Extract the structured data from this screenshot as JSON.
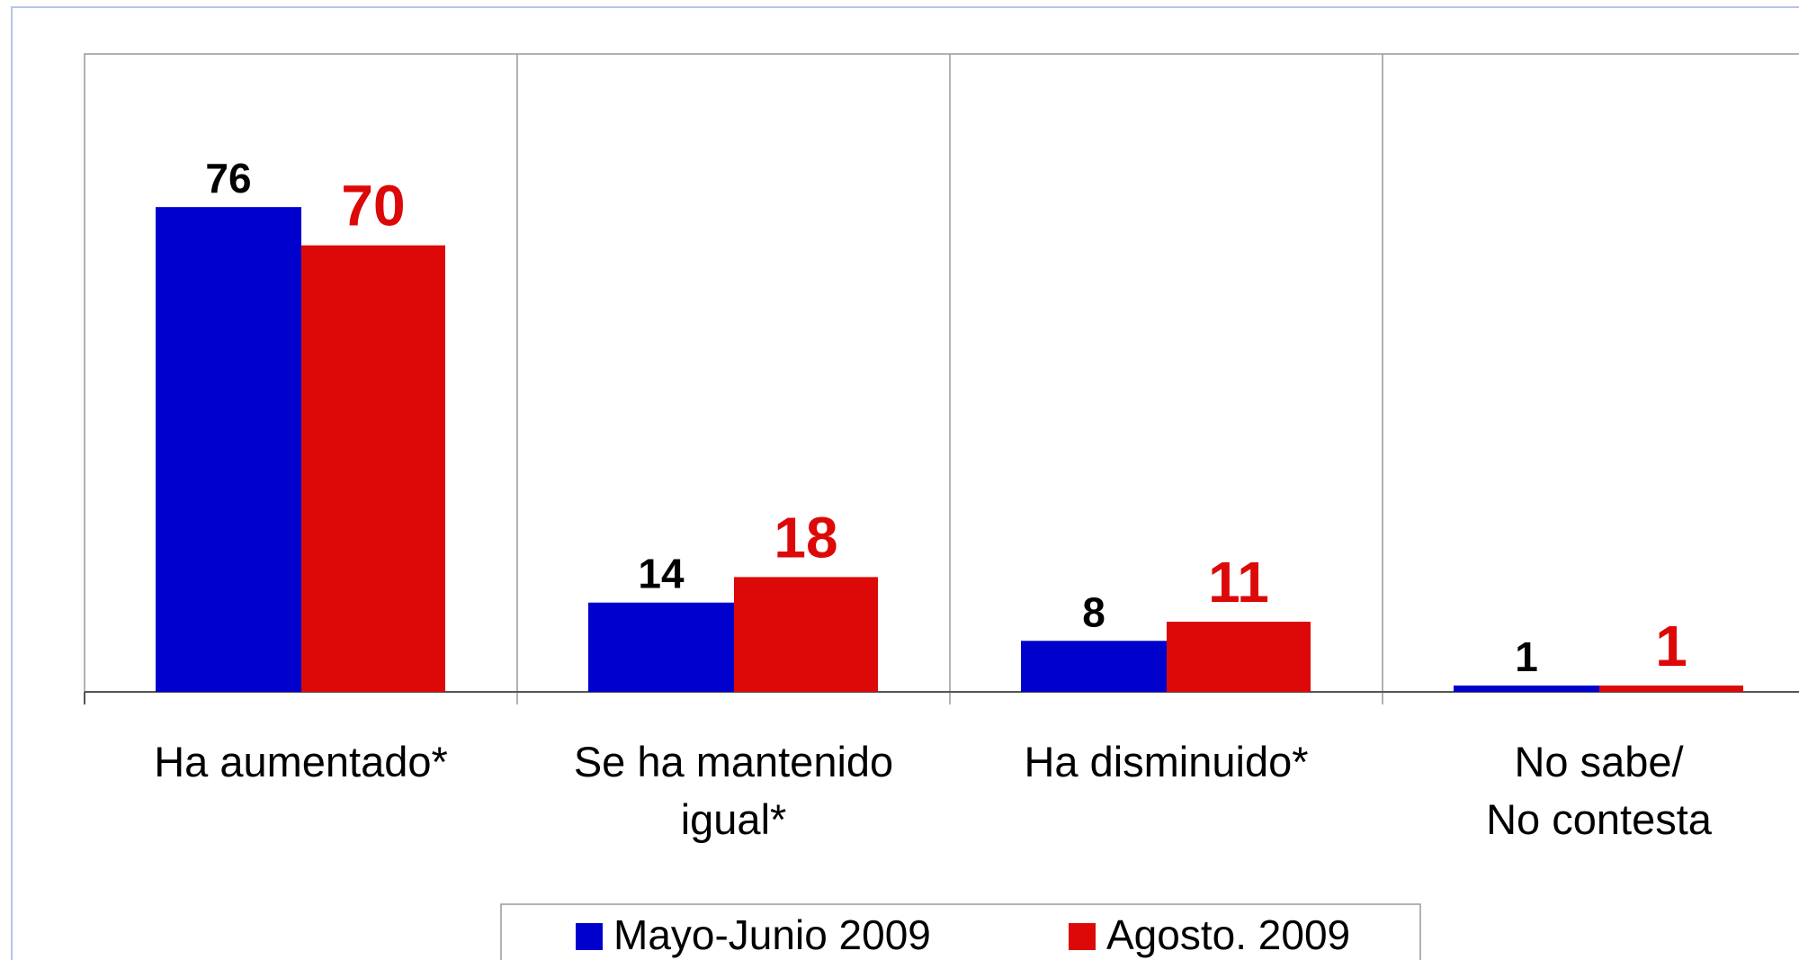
{
  "chart_data": {
    "type": "bar",
    "categories": [
      "Ha aumentado*",
      "Se ha mantenido\nigual*",
      "Ha disminuido*",
      "No sabe/\nNo contesta"
    ],
    "series": [
      {
        "name": "Mayo-Junio 2009",
        "color": "#0000cc",
        "label_color": "#000000",
        "values": [
          76,
          14,
          8,
          1
        ]
      },
      {
        "name": "Agosto. 2009",
        "color": "#dd0808",
        "label_color": "#dd0808",
        "values": [
          70,
          18,
          11,
          1
        ]
      }
    ],
    "ylim": [
      0,
      100
    ],
    "legend": "bottom"
  }
}
